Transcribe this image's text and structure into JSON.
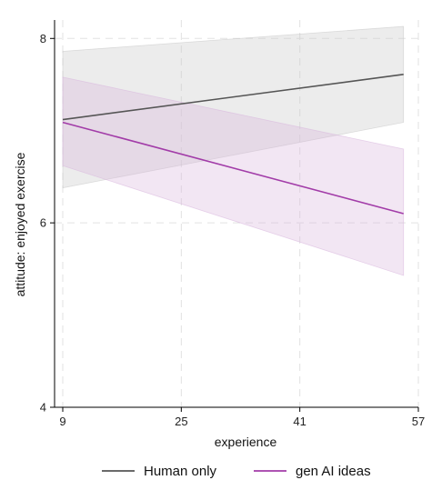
{
  "chart_data": {
    "type": "line",
    "title": "",
    "xlabel": "experience",
    "ylabel": "attitude: enjoyed exercise",
    "xlim": [
      9,
      57
    ],
    "ylim": [
      4,
      8.2
    ],
    "xticks": [
      9,
      25,
      41,
      57
    ],
    "yticks": [
      4,
      6,
      8
    ],
    "grid": true,
    "legend_placement": "bottom",
    "series": [
      {
        "name": "Human only",
        "color": "#555555",
        "band_color": "#c8c8c8",
        "x": [
          9,
          55
        ],
        "y": [
          7.12,
          7.61
        ],
        "ci_lower": [
          6.38,
          7.09
        ],
        "ci_upper": [
          7.86,
          8.13
        ]
      },
      {
        "name": "gen AI ideas",
        "color": "#a23ca8",
        "band_color": "#d9b7dd",
        "x": [
          9,
          55
        ],
        "y": [
          7.09,
          6.1
        ],
        "ci_lower": [
          6.62,
          5.43
        ],
        "ci_upper": [
          7.58,
          6.8
        ]
      }
    ]
  }
}
